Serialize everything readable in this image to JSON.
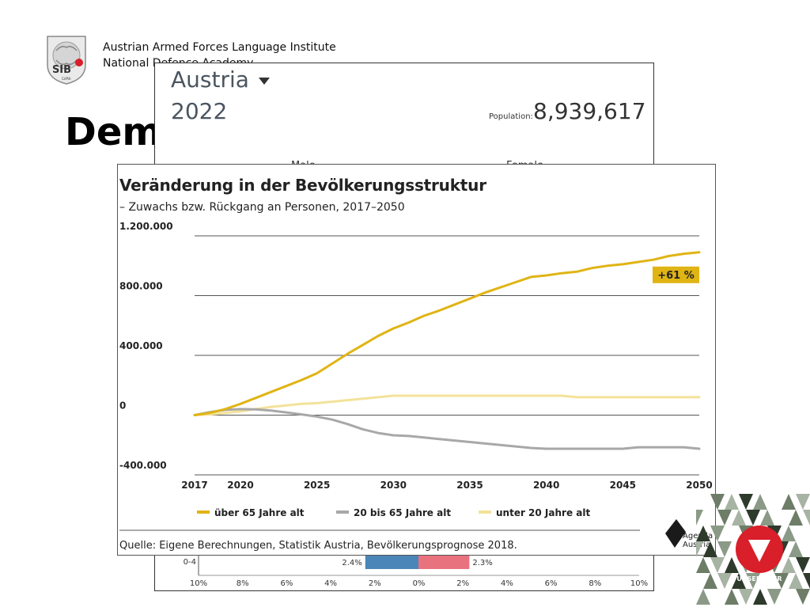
{
  "header": {
    "institute_line1": "Austrian Armed Forces Language Institute",
    "institute_line2": "National Defence Academy",
    "slide_title": "Dem",
    "sib_logo_text": "SIB",
    "sib_logo_subtext": "LVAk"
  },
  "pyramid_panel": {
    "country": "Austria",
    "year": "2022",
    "population_label": "Population:",
    "population_value": "8,939,617",
    "male_label": "Male",
    "female_label": "Female",
    "bottom_row": {
      "age_group": "0-4",
      "male_pct_label": "2.4%",
      "female_pct_label": "2.3%",
      "male_pct": 2.4,
      "female_pct": 2.3,
      "male_color": "#4a86b8",
      "female_color": "#e9727f"
    },
    "x_ticks": [
      "10%",
      "8%",
      "6%",
      "4%",
      "2%",
      "0%",
      "2%",
      "4%",
      "6%",
      "8%",
      "10%"
    ]
  },
  "chart_data": {
    "type": "line",
    "title": "Veränderung in der Bevölkerungsstruktur",
    "subtitle": "– Zuwachs bzw. Rückgang an Personen, 2017–2050",
    "ylim": [
      -400000,
      1200000
    ],
    "xlim": [
      2017,
      2050
    ],
    "y_ticks": [
      1200000,
      800000,
      400000,
      0,
      -400000
    ],
    "y_tick_labels": [
      "1.200.000",
      "800.000",
      "400.000",
      "0",
      "-400.000"
    ],
    "x_ticks": [
      2017,
      2020,
      2025,
      2030,
      2035,
      2040,
      2045,
      2050
    ],
    "x_tick_labels": [
      "2017",
      "2020",
      "2025",
      "2030",
      "2035",
      "2040",
      "2045",
      "2050"
    ],
    "grid": true,
    "legend_position": "bottom",
    "series": [
      {
        "name": "über 65 Jahre alt",
        "color": "#e0b414",
        "points": [
          [
            2017,
            0
          ],
          [
            2018,
            15000
          ],
          [
            2019,
            40000
          ],
          [
            2020,
            75000
          ],
          [
            2021,
            115000
          ],
          [
            2022,
            155000
          ],
          [
            2023,
            195000
          ],
          [
            2024,
            235000
          ],
          [
            2025,
            280000
          ],
          [
            2026,
            345000
          ],
          [
            2027,
            410000
          ],
          [
            2028,
            470000
          ],
          [
            2029,
            530000
          ],
          [
            2030,
            580000
          ],
          [
            2031,
            620000
          ],
          [
            2032,
            665000
          ],
          [
            2033,
            700000
          ],
          [
            2034,
            740000
          ],
          [
            2035,
            780000
          ],
          [
            2036,
            820000
          ],
          [
            2037,
            855000
          ],
          [
            2038,
            890000
          ],
          [
            2039,
            925000
          ],
          [
            2040,
            935000
          ],
          [
            2041,
            950000
          ],
          [
            2042,
            960000
          ],
          [
            2043,
            985000
          ],
          [
            2044,
            1000000
          ],
          [
            2045,
            1010000
          ],
          [
            2046,
            1025000
          ],
          [
            2047,
            1040000
          ],
          [
            2048,
            1065000
          ],
          [
            2049,
            1080000
          ],
          [
            2050,
            1090000
          ]
        ]
      },
      {
        "name": "20 bis 65 Jahre alt",
        "color": "#a8a8a8",
        "points": [
          [
            2017,
            0
          ],
          [
            2018,
            20000
          ],
          [
            2019,
            35000
          ],
          [
            2020,
            40000
          ],
          [
            2021,
            38000
          ],
          [
            2022,
            30000
          ],
          [
            2023,
            18000
          ],
          [
            2024,
            5000
          ],
          [
            2025,
            -10000
          ],
          [
            2026,
            -30000
          ],
          [
            2027,
            -60000
          ],
          [
            2028,
            -95000
          ],
          [
            2029,
            -120000
          ],
          [
            2030,
            -135000
          ],
          [
            2031,
            -140000
          ],
          [
            2032,
            -150000
          ],
          [
            2033,
            -160000
          ],
          [
            2034,
            -170000
          ],
          [
            2035,
            -180000
          ],
          [
            2036,
            -190000
          ],
          [
            2037,
            -200000
          ],
          [
            2038,
            -210000
          ],
          [
            2039,
            -220000
          ],
          [
            2040,
            -225000
          ],
          [
            2041,
            -225000
          ],
          [
            2042,
            -225000
          ],
          [
            2043,
            -225000
          ],
          [
            2044,
            -225000
          ],
          [
            2045,
            -225000
          ],
          [
            2046,
            -215000
          ],
          [
            2047,
            -215000
          ],
          [
            2048,
            -215000
          ],
          [
            2049,
            -215000
          ],
          [
            2050,
            -225000
          ]
        ]
      },
      {
        "name": "unter 20 Jahre alt",
        "color": "#f3e29a",
        "points": [
          [
            2017,
            0
          ],
          [
            2018,
            5000
          ],
          [
            2019,
            15000
          ],
          [
            2020,
            25000
          ],
          [
            2021,
            40000
          ],
          [
            2022,
            55000
          ],
          [
            2023,
            65000
          ],
          [
            2024,
            75000
          ],
          [
            2025,
            80000
          ],
          [
            2026,
            90000
          ],
          [
            2027,
            100000
          ],
          [
            2028,
            110000
          ],
          [
            2029,
            120000
          ],
          [
            2030,
            130000
          ],
          [
            2031,
            130000
          ],
          [
            2032,
            130000
          ],
          [
            2033,
            130000
          ],
          [
            2034,
            130000
          ],
          [
            2035,
            130000
          ],
          [
            2036,
            130000
          ],
          [
            2037,
            130000
          ],
          [
            2038,
            130000
          ],
          [
            2039,
            130000
          ],
          [
            2040,
            130000
          ],
          [
            2041,
            130000
          ],
          [
            2042,
            120000
          ],
          [
            2043,
            120000
          ],
          [
            2044,
            120000
          ],
          [
            2045,
            120000
          ],
          [
            2046,
            120000
          ],
          [
            2047,
            120000
          ],
          [
            2048,
            120000
          ],
          [
            2049,
            120000
          ],
          [
            2050,
            120000
          ]
        ]
      }
    ],
    "annotation": {
      "text": "+61 %",
      "series": "über 65 Jahre alt",
      "color": "#e0b414"
    },
    "source": "Quelle: Eigene Berechnungen, Statistik Austria, Bevölkerungsprognose 2018.",
    "publisher": {
      "line1": "Agenda",
      "line2": "Austria"
    }
  },
  "corner_logo": {
    "text": "UNSER HEER"
  }
}
